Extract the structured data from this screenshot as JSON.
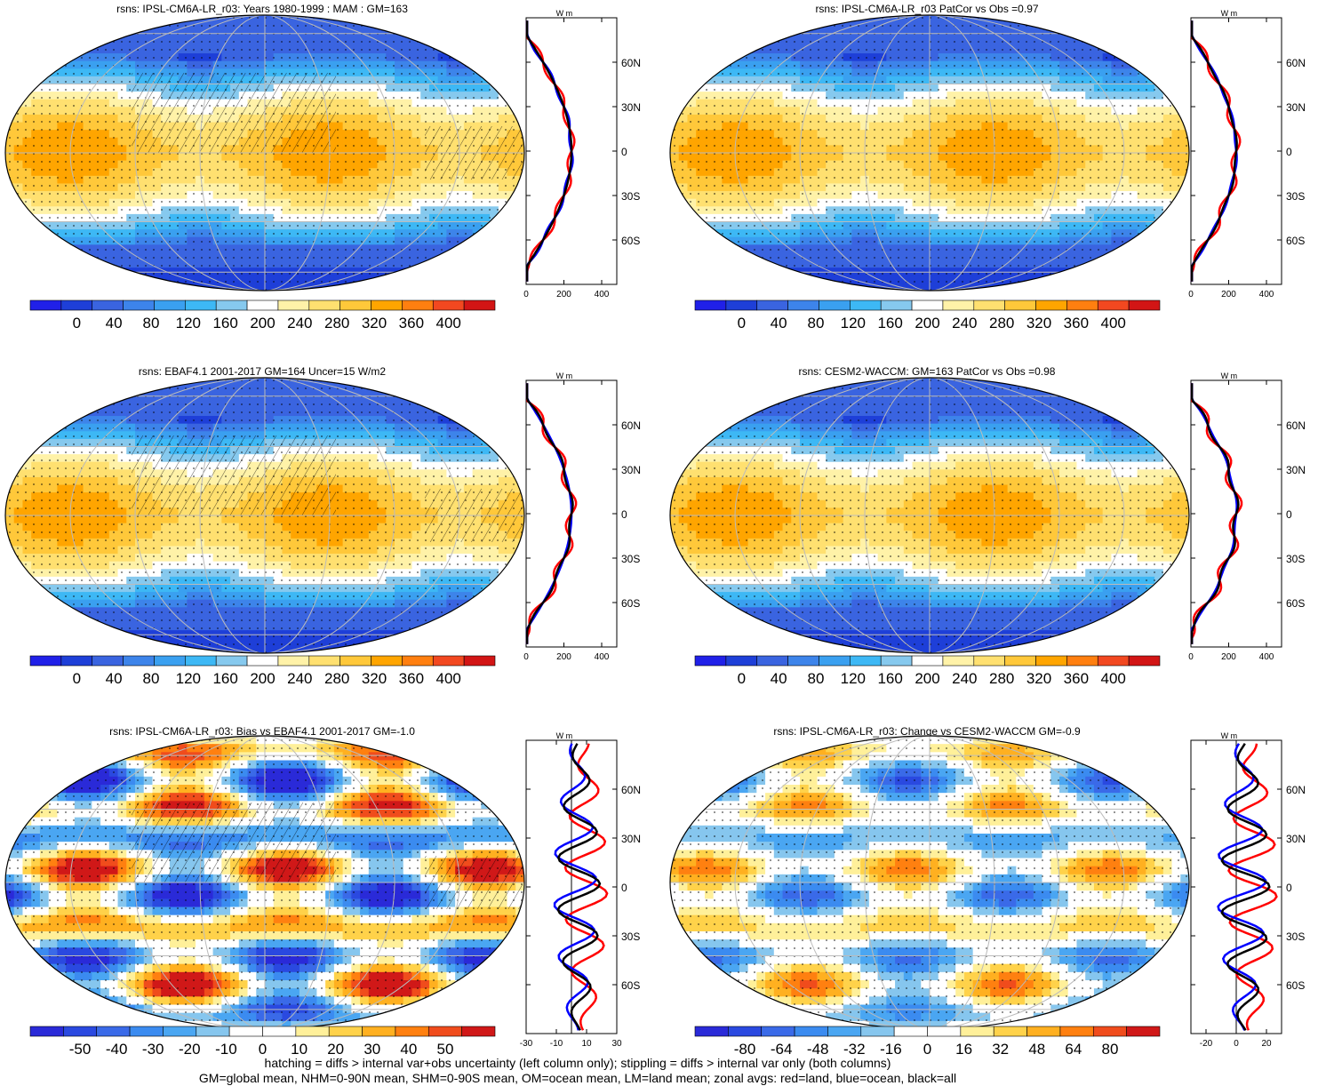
{
  "footer": {
    "line1": "hatching = diffs > internal var+obs uncertainty (left column only); stippling = diffs > internal var only (both columns)",
    "line2": "GM=global mean, NHM=0-90N mean, SHM=0-90S mean, OM=ocean mean, LM=land mean; zonal avgs: red=land, blue=ocean, black=all"
  },
  "colors": {
    "land": "#ff0000",
    "ocean": "#0000ff",
    "all": "#000000"
  },
  "chart_data": [
    {
      "type": "heatmap",
      "title": "rsns: IPSL-CM6A-LR_r03: Years 1980-1999 : MAM : GM=163",
      "colorbar": {
        "ticks": [
          "0",
          "40",
          "80",
          "120",
          "160",
          "200",
          "240",
          "280",
          "320",
          "360",
          "400"
        ],
        "range": [
          -20,
          420
        ],
        "palette": "absolute"
      },
      "stippling": true,
      "hatching": true,
      "zonal": {
        "unit_label": "W m",
        "xticks": [
          "0",
          "200",
          "400"
        ],
        "xlim": [
          0,
          480
        ],
        "ylim": [
          -90,
          90
        ],
        "yticks": [
          "60N",
          "30N",
          "0",
          "30S",
          "60S"
        ],
        "profile": "abs",
        "var": 0.0
      }
    },
    {
      "type": "heatmap",
      "title": "rsns: IPSL-CM6A-LR_r03 PatCor vs Obs =0.97",
      "colorbar": {
        "ticks": [
          "0",
          "40",
          "80",
          "120",
          "160",
          "200",
          "240",
          "280",
          "320",
          "360",
          "400"
        ],
        "range": [
          -20,
          420
        ],
        "palette": "absolute"
      },
      "stippling": true,
      "hatching": false,
      "zonal": {
        "unit_label": "W m",
        "xticks": [
          "0",
          "200",
          "400"
        ],
        "xlim": [
          0,
          480
        ],
        "ylim": [
          -90,
          90
        ],
        "yticks": [
          "60N",
          "30N",
          "0",
          "30S",
          "60S"
        ],
        "profile": "abs",
        "var": 0.3
      }
    },
    {
      "type": "heatmap",
      "title": "rsns: EBAF4.1 2001-2017 GM=164 Uncer=15 W/m2",
      "colorbar": {
        "ticks": [
          "0",
          "40",
          "80",
          "120",
          "160",
          "200",
          "240",
          "280",
          "320",
          "360",
          "400"
        ],
        "range": [
          -20,
          420
        ],
        "palette": "absolute"
      },
      "stippling": true,
      "hatching": true,
      "zonal": {
        "unit_label": "W m",
        "xticks": [
          "0",
          "200",
          "400"
        ],
        "xlim": [
          0,
          480
        ],
        "ylim": [
          -90,
          90
        ],
        "yticks": [
          "60N",
          "30N",
          "0",
          "30S",
          "60S"
        ],
        "profile": "abs",
        "var": 0.6
      }
    },
    {
      "type": "heatmap",
      "title": "rsns: CESM2-WACCM: GM=163 PatCor vs Obs =0.98",
      "colorbar": {
        "ticks": [
          "0",
          "40",
          "80",
          "120",
          "160",
          "200",
          "240",
          "280",
          "320",
          "360",
          "400"
        ],
        "range": [
          -20,
          420
        ],
        "palette": "absolute"
      },
      "stippling": true,
      "hatching": false,
      "zonal": {
        "unit_label": "W m",
        "xticks": [
          "0",
          "200",
          "400"
        ],
        "xlim": [
          0,
          480
        ],
        "ylim": [
          -90,
          90
        ],
        "yticks": [
          "60N",
          "30N",
          "0",
          "30S",
          "60S"
        ],
        "profile": "abs",
        "var": 0.9
      }
    },
    {
      "type": "heatmap",
      "title": "rsns: IPSL-CM6A-LR_r03: Bias vs EBAF4.1 2001-2017 GM=-1.0",
      "colorbar": {
        "ticks": [
          "-50",
          "-40",
          "-30",
          "-20",
          "-10",
          "0",
          "10",
          "20",
          "30",
          "40",
          "50"
        ],
        "range": [
          -55,
          55
        ],
        "palette": "diff"
      },
      "stippling": true,
      "hatching": true,
      "zonal": {
        "unit_label": "W m",
        "xticks": [
          "-30",
          "-10",
          "10",
          "30"
        ],
        "xlim": [
          -30,
          30
        ],
        "ylim": [
          -90,
          90
        ],
        "yticks": [
          "60N",
          "30N",
          "0",
          "30S",
          "60S"
        ],
        "profile": "bias",
        "var": 1.2
      }
    },
    {
      "type": "heatmap",
      "title": "rsns: IPSL-CM6A-LR_r03: Change vs CESM2-WACCM GM=-0.9",
      "colorbar": {
        "ticks": [
          "-80",
          "-64",
          "-48",
          "-32",
          "-16",
          "0",
          "16",
          "32",
          "48",
          "64",
          "80"
        ],
        "range": [
          -88,
          88
        ],
        "palette": "diff"
      },
      "stippling": true,
      "hatching": false,
      "zonal": {
        "unit_label": "W m",
        "xticks": [
          "-20",
          "0",
          "20"
        ],
        "xlim": [
          -30,
          30
        ],
        "ylim": [
          -90,
          90
        ],
        "yticks": [
          "60N",
          "30N",
          "0",
          "30S",
          "60S"
        ],
        "profile": "change",
        "var": 1.5
      }
    }
  ]
}
